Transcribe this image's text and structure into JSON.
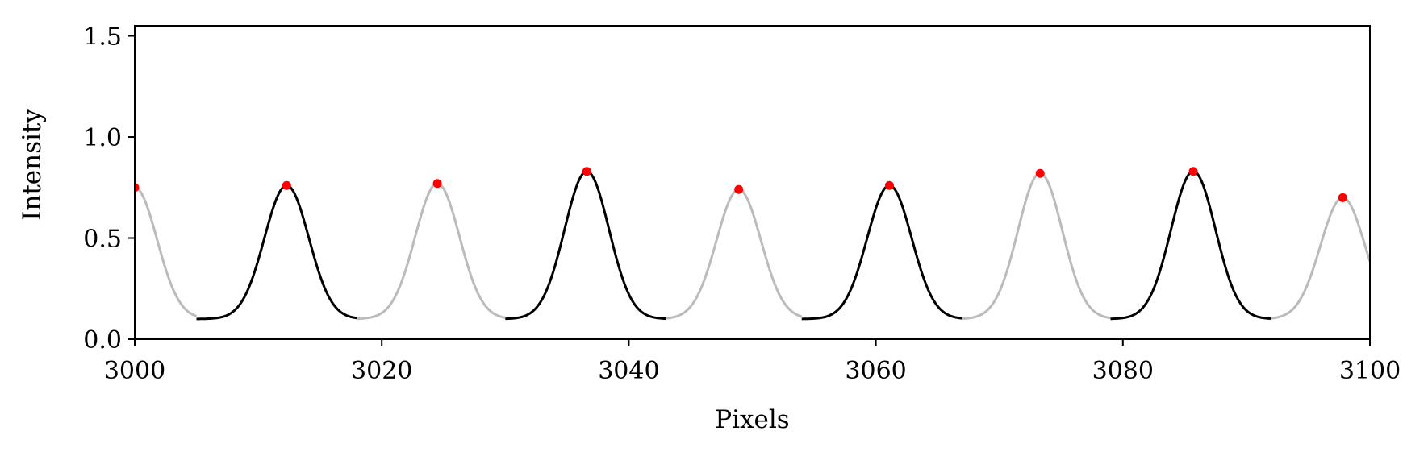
{
  "chart_data": {
    "type": "line",
    "title": "",
    "xlabel": "Pixels",
    "ylabel": "Intensity",
    "xlim": [
      3000,
      3100
    ],
    "ylim": [
      0.0,
      1.55
    ],
    "x_ticks": [
      3000,
      3020,
      3040,
      3060,
      3080,
      3100
    ],
    "x_tick_labels": [
      "3000",
      "3020",
      "3040",
      "3060",
      "3080",
      "3100"
    ],
    "y_ticks": [
      0.0,
      0.5,
      1.0,
      1.5
    ],
    "y_tick_labels": [
      "0.0",
      "0.5",
      "1.0",
      "1.5"
    ],
    "grid": false,
    "legend": false,
    "baseline": 0.1,
    "peak_width_sigma": 1.8,
    "series": [
      {
        "color": "#000000",
        "segments": [
          {
            "x_start": 3005.0,
            "x_end": 3018.0,
            "peak_x": 3012.3,
            "peak_y": 0.76
          },
          {
            "x_start": 3030.0,
            "x_end": 3043.0,
            "peak_x": 3036.6,
            "peak_y": 0.83
          },
          {
            "x_start": 3054.0,
            "x_end": 3067.0,
            "peak_x": 3061.1,
            "peak_y": 0.76
          },
          {
            "x_start": 3079.0,
            "x_end": 3092.0,
            "peak_x": 3085.7,
            "peak_y": 0.83
          }
        ]
      },
      {
        "color": "#bbbbbb",
        "segments": [
          {
            "x_start": 3000.0,
            "x_end": 3005.0,
            "peak_x": 3000.0,
            "peak_y": 0.75
          },
          {
            "x_start": 3018.0,
            "x_end": 3030.0,
            "peak_x": 3024.5,
            "peak_y": 0.77
          },
          {
            "x_start": 3043.0,
            "x_end": 3054.0,
            "peak_x": 3048.9,
            "peak_y": 0.74
          },
          {
            "x_start": 3067.0,
            "x_end": 3079.0,
            "peak_x": 3073.3,
            "peak_y": 0.82
          },
          {
            "x_start": 3092.0,
            "x_end": 3100.0,
            "peak_x": 3097.8,
            "peak_y": 0.7
          }
        ]
      }
    ],
    "peak_markers": {
      "color": "#ff0000",
      "x": [
        3000.0,
        3012.3,
        3024.5,
        3036.6,
        3048.9,
        3061.1,
        3073.3,
        3085.7,
        3097.8
      ],
      "y": [
        0.75,
        0.76,
        0.77,
        0.83,
        0.74,
        0.76,
        0.82,
        0.83,
        0.7
      ]
    }
  }
}
